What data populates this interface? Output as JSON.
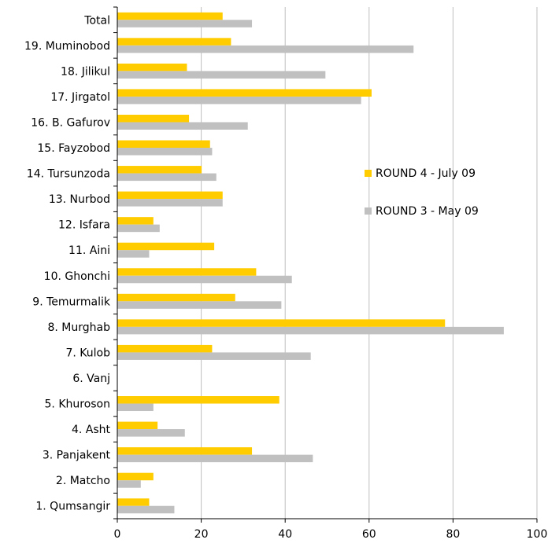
{
  "chart_data": {
    "type": "bar",
    "orientation": "horizontal",
    "categories": [
      "Total",
      "19. Muminobod",
      "18. Jilikul",
      "17. Jirgatol",
      "16. B. Gafurov",
      "15. Fayzobod",
      "14. Tursunzoda",
      "13. Nurbod",
      "12. Isfara",
      "11. Aini",
      "10. Ghonchi",
      "9. Temurmalik",
      "8. Murghab",
      "7. Kulob",
      "6. Vanj",
      "5. Khuroson",
      "4. Asht",
      "3. Panjakent",
      "2. Matcho",
      "1. Qumsangir"
    ],
    "series": [
      {
        "name": "ROUND 4 - July 09",
        "color": "#FFCC00",
        "values": [
          25,
          27,
          16.5,
          60.5,
          17,
          22,
          20,
          25,
          8.5,
          23,
          33,
          28,
          78,
          22.5,
          0,
          38.5,
          9.5,
          32,
          8.5,
          7.5
        ]
      },
      {
        "name": "ROUND 3 - May 09",
        "color": "#C0C0C0",
        "values": [
          32,
          70.5,
          49.5,
          58,
          31,
          22.5,
          23.5,
          25,
          10,
          7.5,
          41.5,
          39,
          92,
          46,
          0,
          8.5,
          16,
          46.5,
          5.5,
          13.5
        ]
      }
    ],
    "xlim": [
      0,
      100
    ],
    "x_ticks": [
      "0",
      "20",
      "40",
      "60",
      "80",
      "100"
    ],
    "xlabel": "",
    "ylabel": "",
    "title": "",
    "grid": "vertical",
    "legend": "center-right"
  }
}
